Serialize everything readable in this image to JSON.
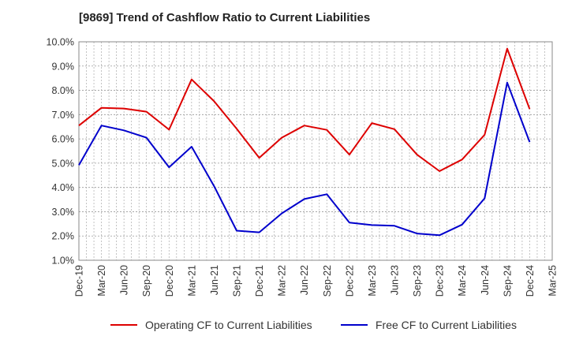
{
  "chart_data": {
    "type": "line",
    "title": "[9869]  Trend of Cashflow Ratio to Current Liabilities",
    "xlabel": "",
    "ylabel": "",
    "ylim": [
      1.0,
      10.0
    ],
    "y_ticks": [
      "10.0%",
      "9.0%",
      "8.0%",
      "7.0%",
      "6.0%",
      "5.0%",
      "4.0%",
      "3.0%",
      "2.0%",
      "1.0%"
    ],
    "x_ticks": [
      "Dec-19",
      "Mar-20",
      "Jun-20",
      "Sep-20",
      "Dec-20",
      "Mar-21",
      "Jun-21",
      "Sep-21",
      "Dec-21",
      "Mar-22",
      "Jun-22",
      "Sep-22",
      "Dec-22",
      "Mar-23",
      "Jun-23",
      "Sep-23",
      "Dec-23",
      "Mar-24",
      "Jun-24",
      "Sep-24",
      "Dec-24",
      "Mar-25"
    ],
    "categories": [
      "Dec-19",
      "Mar-20",
      "Jun-20",
      "Sep-20",
      "Dec-20",
      "Mar-21",
      "Jun-21",
      "Sep-21",
      "Dec-21",
      "Mar-22",
      "Jun-22",
      "Sep-22",
      "Dec-22",
      "Mar-23",
      "Jun-23",
      "Sep-23",
      "Dec-23",
      "Mar-24",
      "Jun-24",
      "Sep-24",
      "Dec-24"
    ],
    "series": [
      {
        "name": "Operating CF to Current Liabilities",
        "color": "#dd0000",
        "values": [
          6.55,
          7.28,
          7.25,
          7.12,
          6.38,
          8.45,
          7.55,
          6.42,
          5.22,
          6.05,
          6.55,
          6.37,
          5.35,
          6.65,
          6.4,
          5.35,
          4.67,
          5.15,
          6.17,
          9.72,
          7.23
        ]
      },
      {
        "name": "Free CF to Current Liabilities",
        "color": "#0000cc",
        "values": [
          4.92,
          6.55,
          6.35,
          6.05,
          4.83,
          5.68,
          4.05,
          2.22,
          2.15,
          2.93,
          3.52,
          3.72,
          2.55,
          2.45,
          2.42,
          2.1,
          2.03,
          2.47,
          3.55,
          8.32,
          5.87
        ]
      }
    ],
    "grid": true,
    "legend_position": "bottom"
  }
}
